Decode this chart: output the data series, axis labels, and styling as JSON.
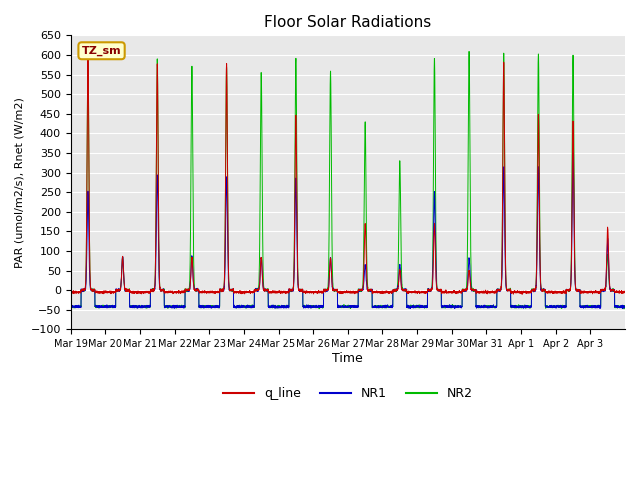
{
  "title": "Floor Solar Radiations",
  "xlabel": "Time",
  "ylabel": "PAR (umol/m2/s), Rnet (W/m2)",
  "ylim": [
    -100,
    650
  ],
  "yticks": [
    -100,
    -50,
    0,
    50,
    100,
    150,
    200,
    250,
    300,
    350,
    400,
    450,
    500,
    550,
    600,
    650
  ],
  "xtick_labels": [
    "Mar 19",
    "Mar 20",
    "Mar 21",
    "Mar 22",
    "Mar 23",
    "Mar 24",
    "Mar 25",
    "Mar 26",
    "Mar 27",
    "Mar 28",
    "Mar 29",
    "Mar 30",
    "Mar 31",
    "Apr 1",
    "Apr 2",
    "Apr 3"
  ],
  "legend_labels": [
    "q_line",
    "NR1",
    "NR2"
  ],
  "annotation_text": "TZ_sm",
  "annotation_bg": "#ffffcc",
  "annotation_border": "#cc9900",
  "bg_color": "#e8e8e8",
  "line_colors": {
    "q_line": "#cc0000",
    "NR1": "#0000cc",
    "NR2": "#00bb00"
  },
  "q_night": -5,
  "nr_night": -42,
  "q_peaks": [
    605,
    85,
    578,
    84,
    578,
    84,
    448,
    84,
    170,
    50,
    170,
    50,
    580,
    450,
    430,
    160
  ],
  "nr1_peaks": [
    250,
    85,
    295,
    85,
    290,
    82,
    285,
    82,
    65,
    65,
    248,
    82,
    315,
    315,
    350,
    130
  ],
  "nr2_peaks": [
    590,
    84,
    590,
    570,
    570,
    558,
    590,
    558,
    430,
    330,
    590,
    610,
    605,
    605,
    600,
    90
  ]
}
